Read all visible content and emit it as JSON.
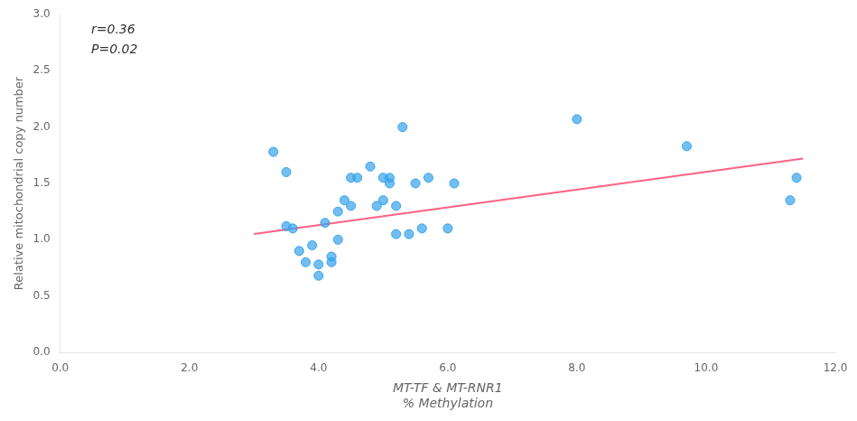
{
  "chart_data": {
    "type": "scatter",
    "xlabel": [
      "MT-TF & MT-RNR1",
      "% Methylation"
    ],
    "ylabel": "Relative mitochondrial copy number",
    "annotation": [
      "r=0.36",
      "P=0.02"
    ],
    "series": [
      {
        "type": "scatter",
        "x": [
          3.3,
          3.5,
          3.5,
          3.6,
          3.7,
          3.8,
          3.9,
          4.0,
          4.0,
          4.1,
          4.2,
          4.2,
          4.3,
          4.3,
          4.4,
          4.5,
          4.5,
          4.6,
          4.8,
          4.9,
          5.0,
          5.0,
          5.1,
          5.1,
          5.2,
          5.2,
          5.3,
          5.4,
          5.5,
          5.6,
          5.7,
          6.0,
          6.1,
          8.0,
          9.7,
          11.3,
          11.4
        ],
        "values": [
          1.78,
          1.12,
          1.6,
          1.1,
          0.9,
          0.8,
          0.95,
          0.78,
          0.68,
          1.15,
          0.85,
          0.8,
          1.25,
          1.0,
          1.35,
          1.3,
          1.55,
          1.55,
          1.65,
          1.3,
          1.35,
          1.55,
          1.55,
          1.5,
          1.05,
          1.3,
          2.0,
          1.05,
          1.5,
          1.1,
          1.55,
          1.1,
          1.5,
          2.07,
          1.83,
          1.35,
          1.55
        ]
      },
      {
        "type": "line",
        "x": [
          3.0,
          11.5
        ],
        "values": [
          1.05,
          1.72
        ]
      }
    ],
    "xlim": [
      0.0,
      12.0
    ],
    "ylim": [
      0.0,
      3.0
    ],
    "xticks": [
      {
        "value": 0,
        "label": "0.0"
      },
      {
        "value": 2,
        "label": "2.0"
      },
      {
        "value": 4,
        "label": "4.0"
      },
      {
        "value": 6,
        "label": "6.0"
      },
      {
        "value": 8,
        "label": "8.0"
      },
      {
        "value": 10,
        "label": "10.0"
      },
      {
        "value": 12,
        "label": "12.0"
      }
    ],
    "yticks": [
      {
        "value": 0,
        "label": "0.0"
      },
      0.5,
      {
        "value": 1,
        "label": "1.0"
      },
      1.5,
      {
        "value": 2,
        "label": "2.0"
      },
      2.5,
      {
        "value": 3,
        "label": "3.0"
      }
    ],
    "grid": false
  }
}
